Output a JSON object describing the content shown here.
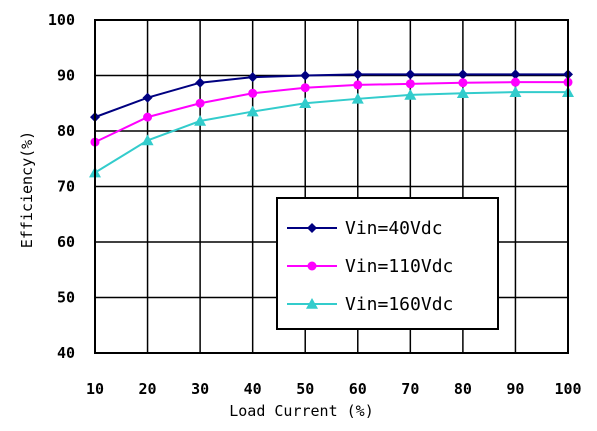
{
  "chart_data": {
    "type": "line",
    "title": "",
    "xlabel": "Load Current (%)",
    "ylabel": "Efficiency(%)",
    "x": [
      10,
      20,
      30,
      40,
      50,
      60,
      70,
      80,
      90,
      100
    ],
    "xlim": [
      10,
      100
    ],
    "ylim": [
      40,
      100
    ],
    "x_ticks": [
      "10",
      "20",
      "30",
      "40",
      "50",
      "60",
      "70",
      "80",
      "90",
      "100"
    ],
    "y_ticks": [
      "40",
      "50",
      "60",
      "70",
      "80",
      "90",
      "100"
    ],
    "grid": true,
    "legend_position": "bottom-right",
    "series": [
      {
        "name": "Vin=40Vdc",
        "color": "#000080",
        "marker": "diamond",
        "values": [
          82.5,
          86.0,
          88.7,
          89.7,
          90.0,
          90.2,
          90.2,
          90.2,
          90.2,
          90.2
        ]
      },
      {
        "name": "Vin=110Vdc",
        "color": "#ff00ff",
        "marker": "circle",
        "values": [
          78.0,
          82.5,
          85.0,
          86.8,
          87.8,
          88.3,
          88.5,
          88.7,
          88.8,
          88.8
        ]
      },
      {
        "name": "Vin=160Vdc",
        "color": "#33cccc",
        "marker": "triangle",
        "values": [
          72.5,
          78.3,
          81.8,
          83.5,
          85.0,
          85.8,
          86.5,
          86.8,
          87.0,
          87.0
        ]
      }
    ]
  }
}
